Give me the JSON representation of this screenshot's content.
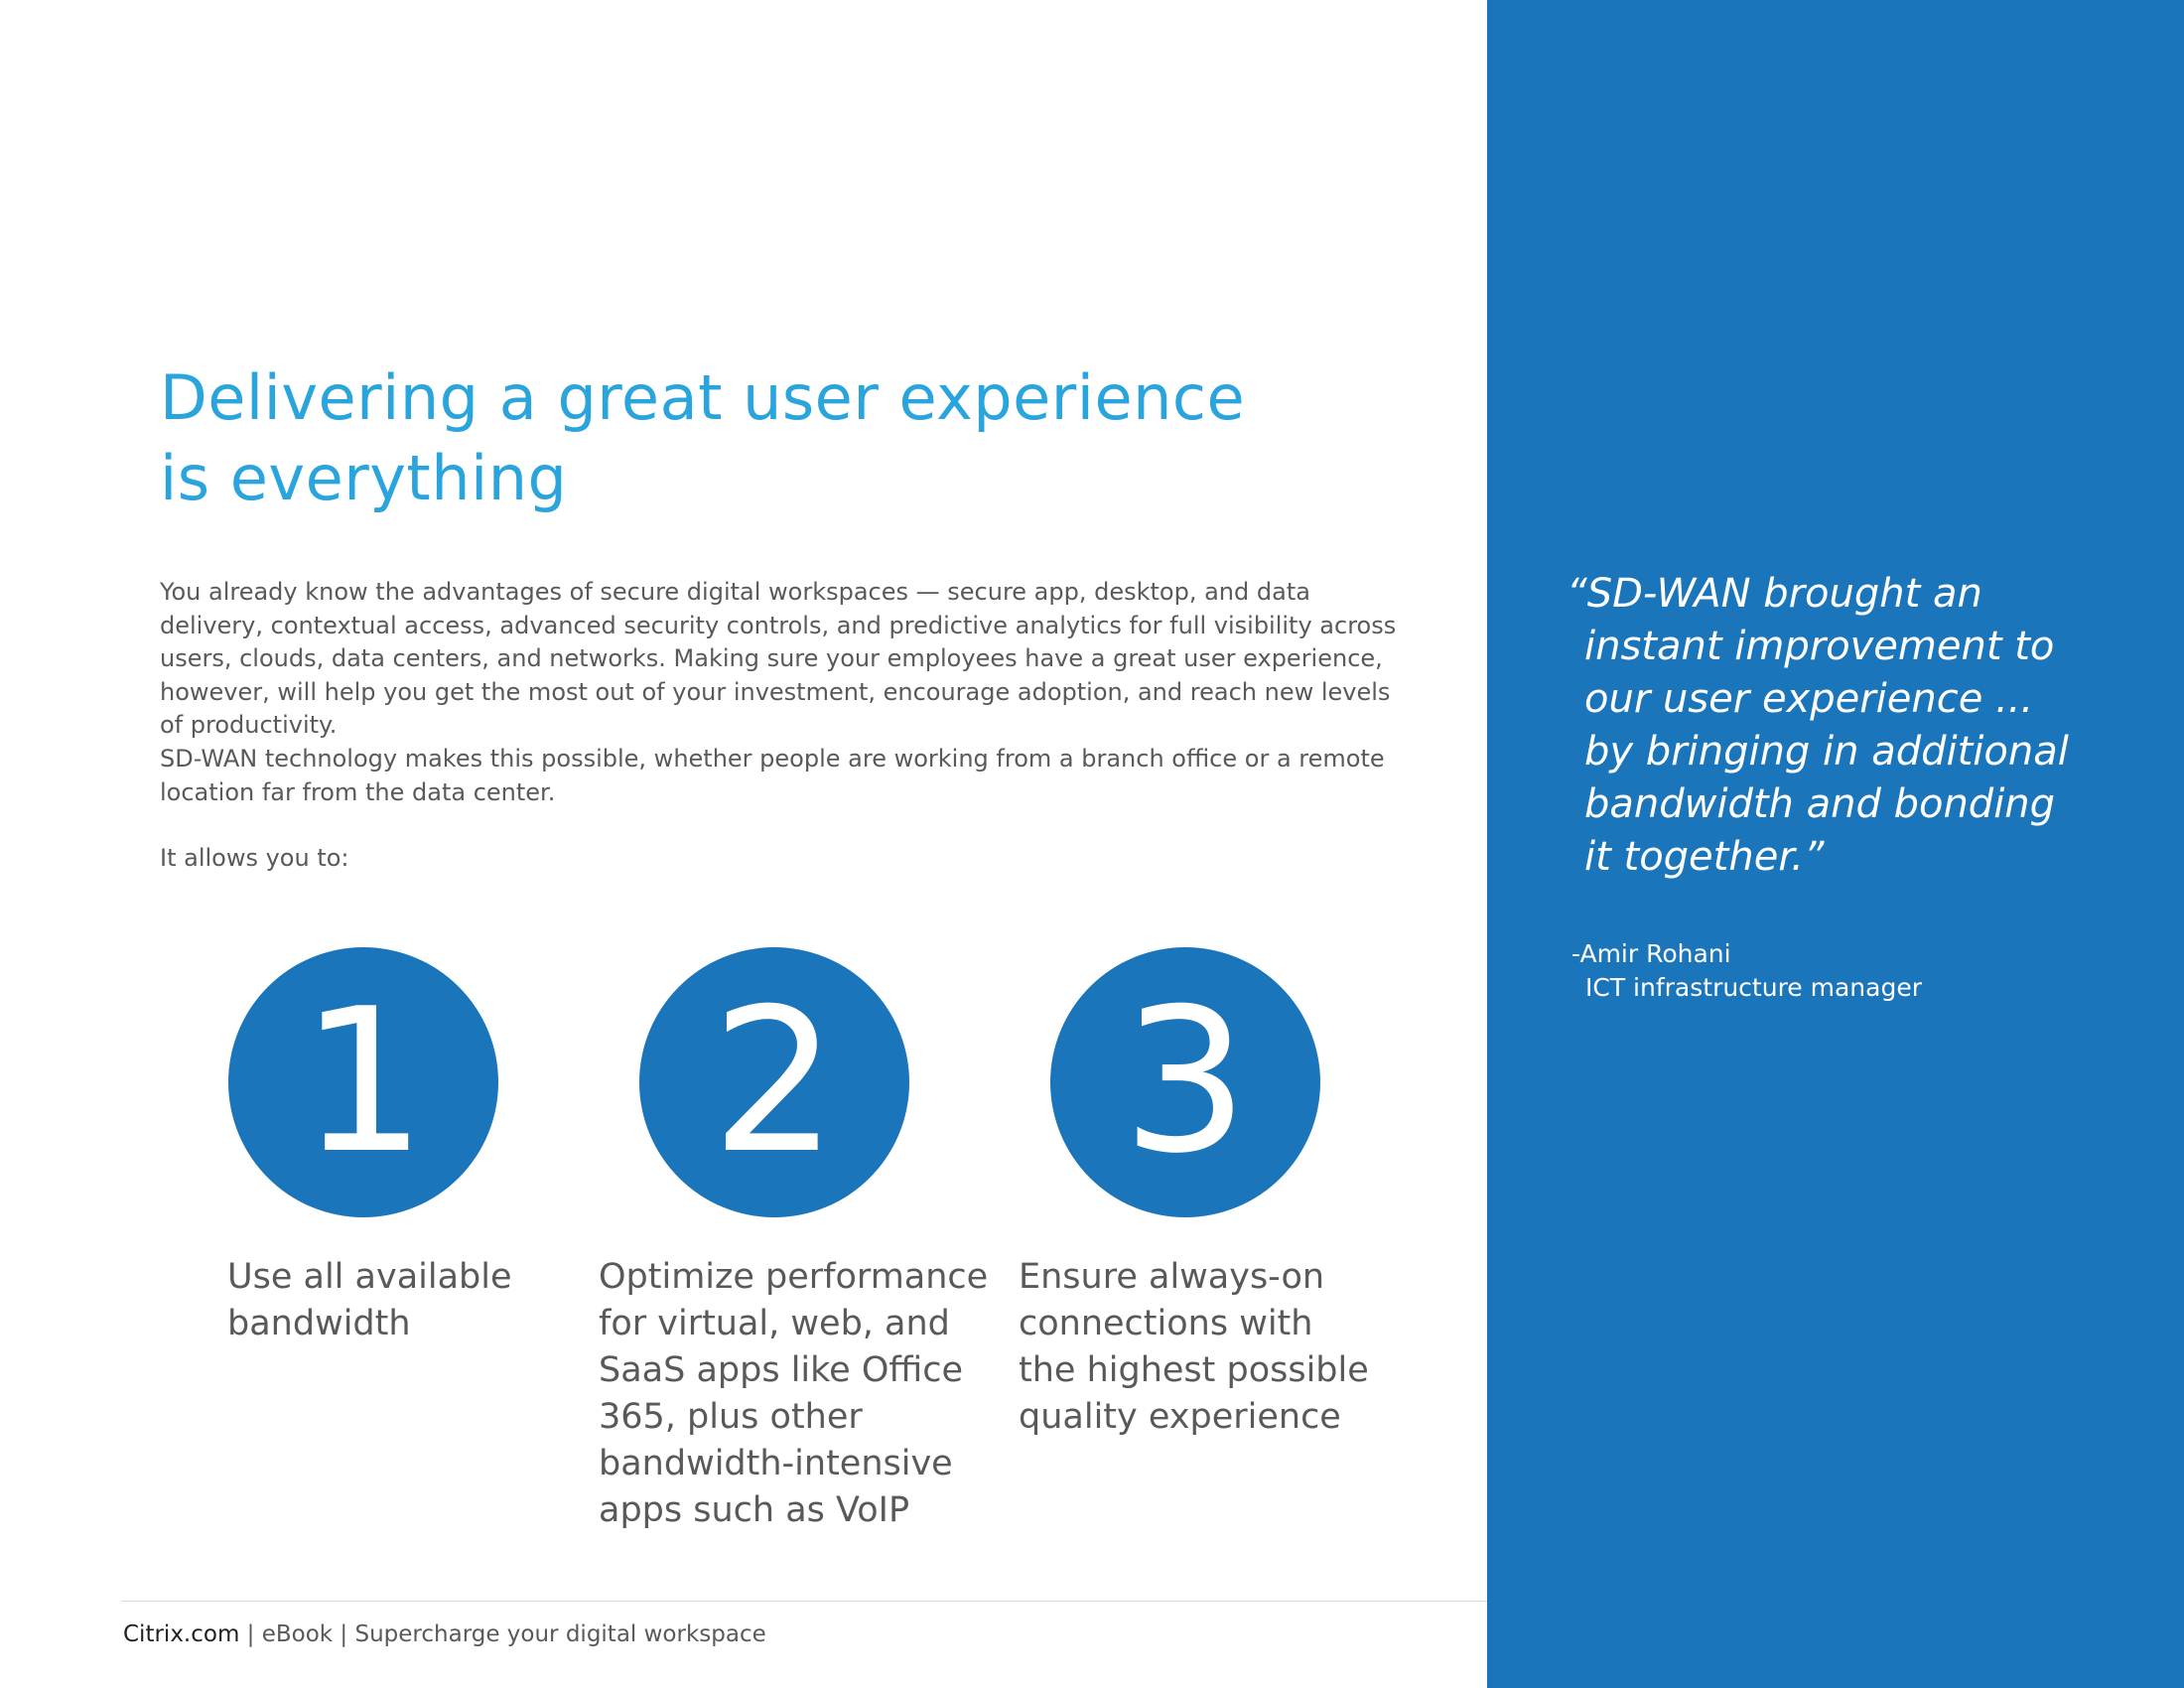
{
  "heading": [
    "Delivering a great user experience",
    "is everything"
  ],
  "paragraphs": [
    "You already know the advantages of secure digital workspaces — secure app, desktop, and data delivery, contextual access, advanced security controls, and predictive analytics for full visibility across users, clouds, data centers, and networks. Making sure your employees have a great user experience, however, will help you get the most out of your investment, encourage adoption, and reach new levels of productivity.",
    "SD-WAN technology makes this possible, whether people are working from a branch office or a remote location far from the data center.",
    "It allows you to:"
  ],
  "steps": [
    {
      "number": "1",
      "lines": [
        "Use all available",
        "bandwidth"
      ]
    },
    {
      "number": "2",
      "lines": [
        "Optimize performance",
        "for virtual, web, and",
        "SaaS apps like Office",
        "365, plus other",
        "bandwidth-intensive",
        "apps such as VoIP"
      ]
    },
    {
      "number": "3",
      "lines": [
        "Ensure always-on",
        "connections with",
        "the highest possible",
        "quality experience"
      ]
    }
  ],
  "quote": {
    "lines": [
      "“SD-WAN brought an",
      "instant improvement to",
      "our user experience ...",
      "by bringing in additional",
      "bandwidth and bonding",
      "it together.”"
    ],
    "attribution": [
      "-Amir Rohani",
      "ICT infrastructure manager"
    ]
  },
  "footer": {
    "brand": "Citrix.com",
    "rest": " | eBook | Supercharge your digital workspace"
  }
}
